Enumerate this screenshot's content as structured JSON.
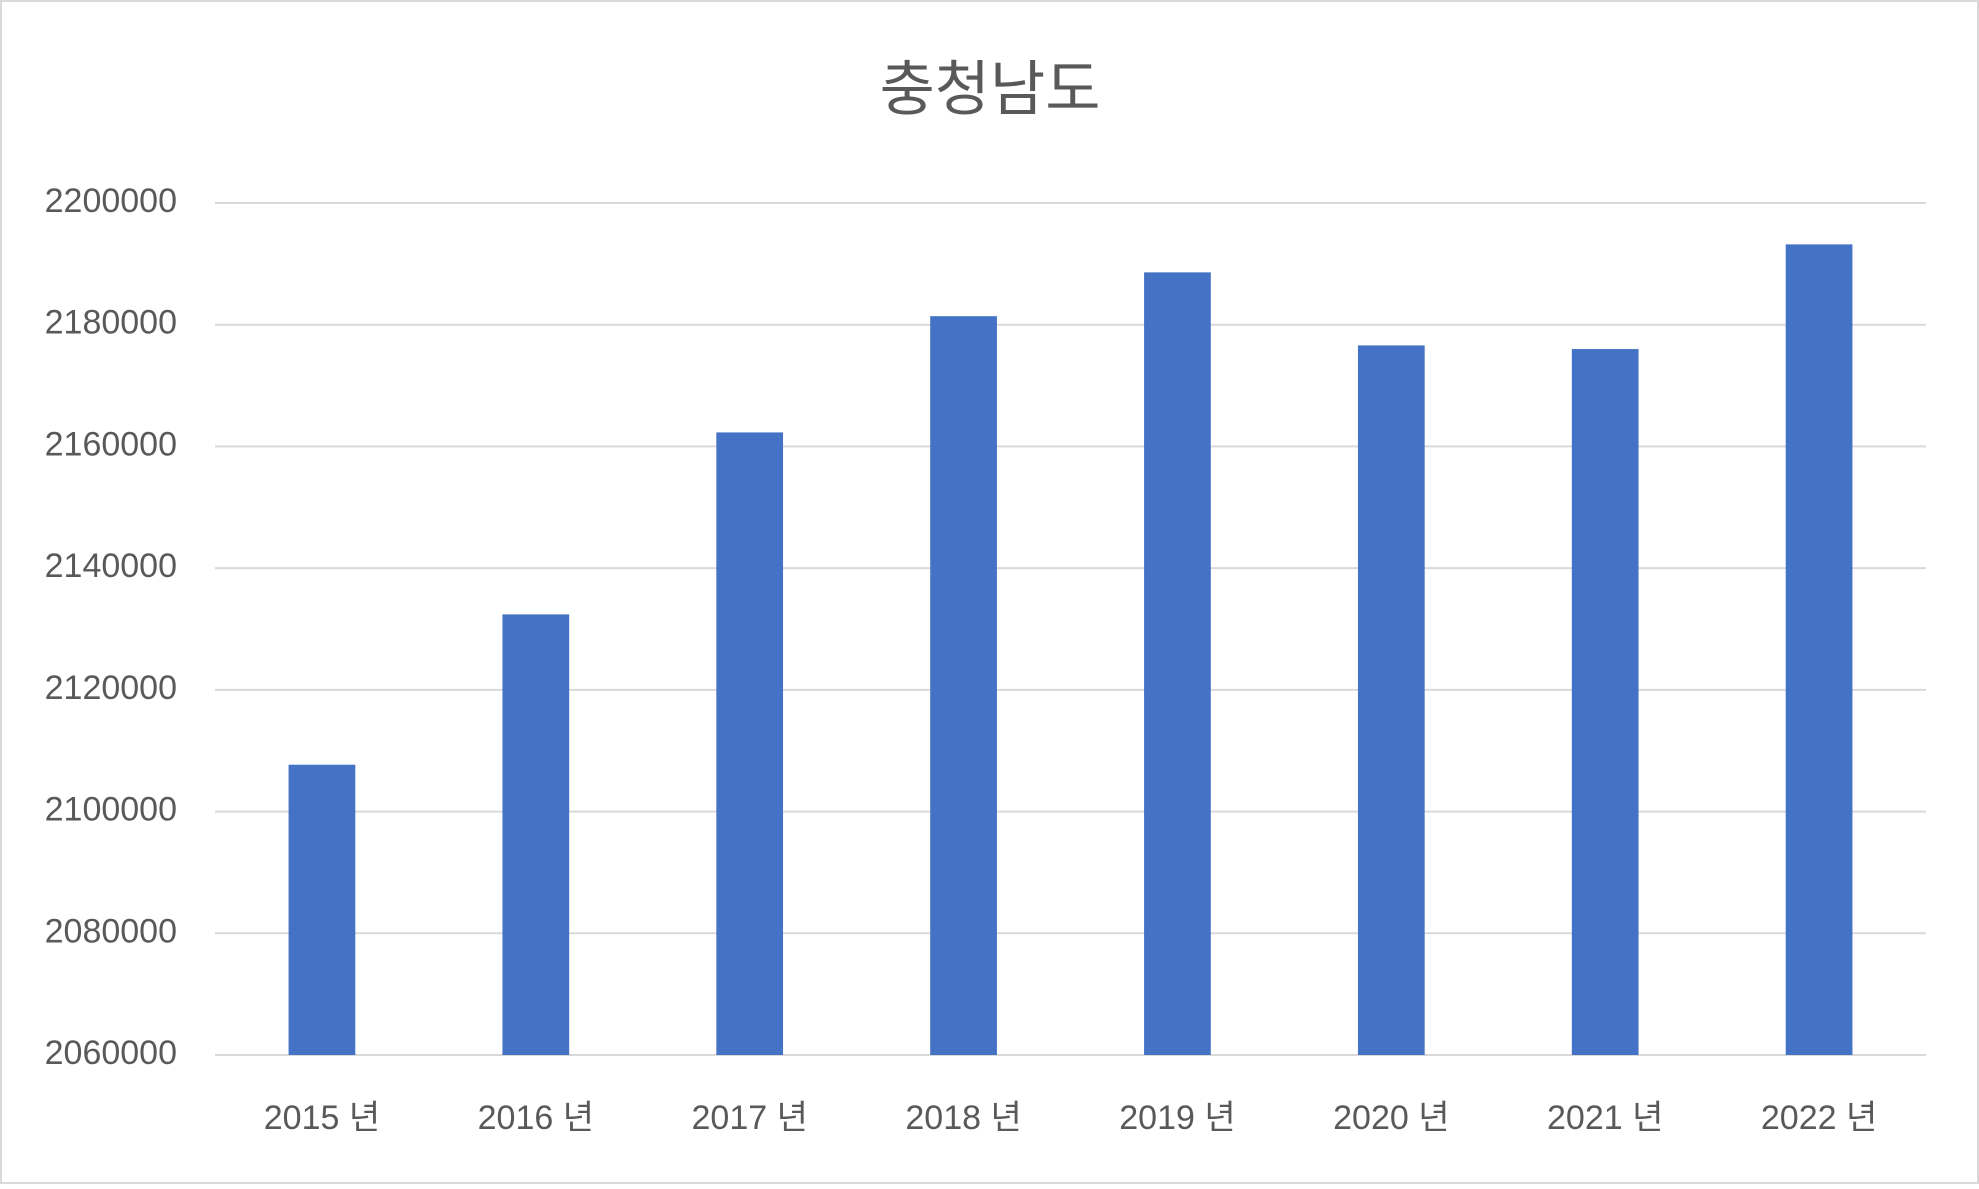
{
  "chart_data": {
    "type": "bar",
    "title": "충청남도",
    "categories": [
      "2015 년",
      "2016 년",
      "2017 년",
      "2018 년",
      "2019 년",
      "2020 년",
      "2021 년",
      "2022 년"
    ],
    "values": [
      2107700,
      2132400,
      2162300,
      2181400,
      2188600,
      2176600,
      2176000,
      2193200
    ],
    "color": "#4472c4",
    "ylim": [
      2060000,
      2200000
    ],
    "yticks": [
      2060000,
      2080000,
      2100000,
      2120000,
      2140000,
      2160000,
      2180000,
      2200000
    ],
    "grid": true
  }
}
